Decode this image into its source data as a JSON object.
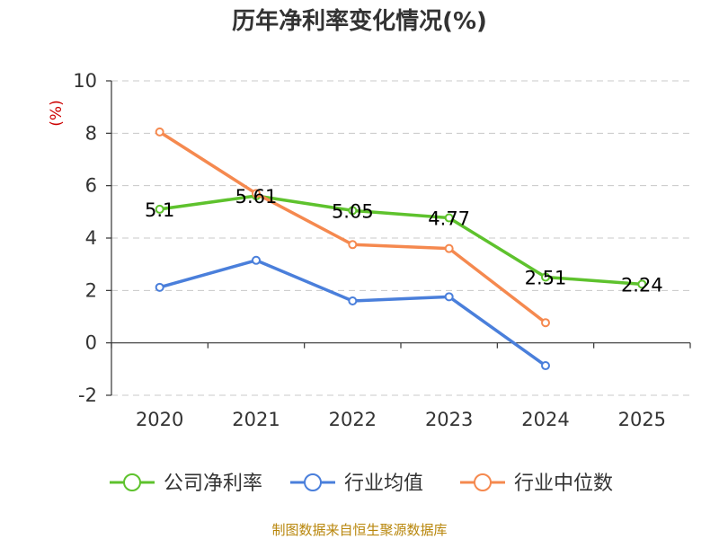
{
  "chart_data": {
    "type": "line",
    "title": "历年净利率变化情况(%)",
    "ylabel": "(%)",
    "xlabel": "",
    "categories": [
      "2020",
      "2021",
      "2022",
      "2023",
      "2024",
      "2025"
    ],
    "ylim": [
      -2,
      10
    ],
    "yticks": [
      -2,
      0,
      2,
      4,
      6,
      8,
      10
    ],
    "grid": true,
    "legend_position": "bottom",
    "series": [
      {
        "name": "公司净利率",
        "color": "#5ec22d",
        "values": [
          5.1,
          5.61,
          5.05,
          4.77,
          2.51,
          2.24
        ],
        "labels": [
          "5.1",
          "5.61",
          "5.05",
          "4.77",
          "2.51",
          "2.24"
        ]
      },
      {
        "name": "行业均值",
        "color": "#4a7fdb",
        "values": [
          2.12,
          3.15,
          1.6,
          1.76,
          -0.87,
          null
        ]
      },
      {
        "name": "行业中位数",
        "color": "#f5894f",
        "values": [
          8.05,
          5.7,
          3.75,
          3.6,
          0.77,
          null
        ]
      }
    ]
  },
  "footer": {
    "source": "制图数据来自恒生聚源数据库"
  }
}
